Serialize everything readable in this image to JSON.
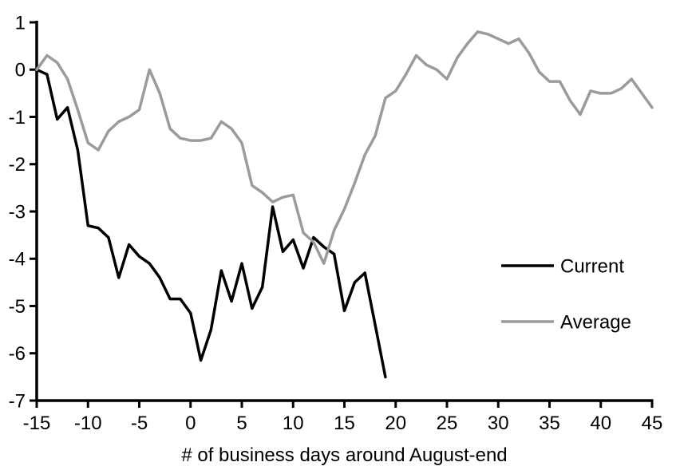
{
  "chart_data": {
    "type": "line",
    "title": "",
    "xlabel": "# of business days around August-end",
    "ylabel": "",
    "xlim": [
      -15,
      45
    ],
    "ylim": [
      -7,
      1
    ],
    "x_ticks": [
      -15,
      -10,
      -5,
      0,
      5,
      10,
      15,
      20,
      25,
      30,
      35,
      40,
      45
    ],
    "y_ticks": [
      1,
      0,
      -1,
      -2,
      -3,
      -4,
      -5,
      -6,
      -7
    ],
    "grid": false,
    "legend_position": "right-center",
    "axis_color": "#000000",
    "series": [
      {
        "name": "Current",
        "color": "#000000",
        "x": [
          -15,
          -14,
          -13,
          -12,
          -11,
          -10,
          -9,
          -8,
          -7,
          -6,
          -5,
          -4,
          -3,
          -2,
          -1,
          0,
          1,
          2,
          3,
          4,
          5,
          6,
          7,
          8,
          9,
          10,
          11,
          12,
          13,
          14,
          15,
          16,
          17,
          18,
          19
        ],
        "values": [
          0,
          -0.1,
          -1.05,
          -0.8,
          -1.7,
          -3.3,
          -3.35,
          -3.55,
          -4.4,
          -3.7,
          -3.95,
          -4.1,
          -4.4,
          -4.85,
          -4.85,
          -5.15,
          -6.15,
          -5.5,
          -4.25,
          -4.9,
          -4.1,
          -5.05,
          -4.6,
          -2.9,
          -3.85,
          -3.6,
          -4.2,
          -3.55,
          -3.75,
          -3.9,
          -5.1,
          -4.5,
          -4.3,
          -5.4,
          -6.5
        ]
      },
      {
        "name": "Average",
        "color": "#9B9B9B",
        "x": [
          -15,
          -14,
          -13,
          -12,
          -11,
          -10,
          -9,
          -8,
          -7,
          -6,
          -5,
          -4,
          -3,
          -2,
          -1,
          0,
          1,
          2,
          3,
          4,
          5,
          6,
          7,
          8,
          9,
          10,
          11,
          12,
          13,
          14,
          15,
          16,
          17,
          18,
          19,
          20,
          21,
          22,
          23,
          24,
          25,
          26,
          27,
          28,
          29,
          30,
          31,
          32,
          33,
          34,
          35,
          36,
          37,
          38,
          39,
          40,
          41,
          42,
          43,
          44,
          45
        ],
        "values": [
          0,
          0.3,
          0.15,
          -0.2,
          -0.85,
          -1.55,
          -1.7,
          -1.3,
          -1.1,
          -1.0,
          -0.85,
          0.0,
          -0.5,
          -1.25,
          -1.45,
          -1.5,
          -1.5,
          -1.45,
          -1.1,
          -1.25,
          -1.55,
          -2.45,
          -2.6,
          -2.8,
          -2.7,
          -2.65,
          -3.45,
          -3.65,
          -4.1,
          -3.4,
          -2.95,
          -2.4,
          -1.8,
          -1.4,
          -0.6,
          -0.45,
          -0.1,
          0.3,
          0.1,
          0.0,
          -0.2,
          0.25,
          0.55,
          0.8,
          0.75,
          0.65,
          0.55,
          0.65,
          0.35,
          -0.05,
          -0.25,
          -0.25,
          -0.65,
          -0.95,
          -0.45,
          -0.5,
          -0.5,
          -0.4,
          -0.2,
          -0.5,
          -0.8
        ]
      }
    ],
    "legend": {
      "items": [
        {
          "label": "Current"
        },
        {
          "label": "Average"
        }
      ]
    }
  }
}
